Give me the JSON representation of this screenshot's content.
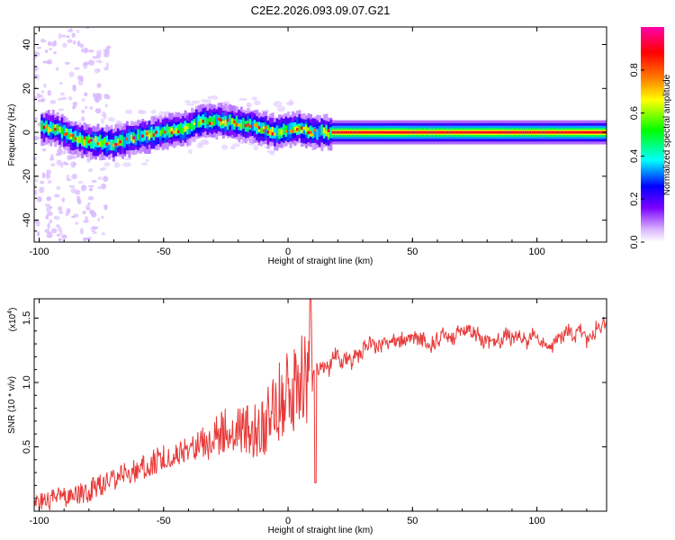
{
  "title": "C2E2.2026.093.09.07.G21",
  "chart_data": [
    {
      "type": "heatmap",
      "xlabel": "Height of straight line (km)",
      "ylabel": "Frequency (Hz)",
      "xlim": [
        -102,
        128
      ],
      "ylim": [
        -50,
        48
      ],
      "xticks": [
        -100,
        -50,
        0,
        50,
        100
      ],
      "yticks": [
        -40,
        -20,
        0,
        20,
        40
      ],
      "colorbar": {
        "label": "Normalized spectral amplitude",
        "range": [
          0,
          1
        ],
        "ticks": [
          "0.0",
          "0.2",
          "0.4",
          "0.6",
          "0.8"
        ],
        "tick_values": [
          0,
          0.2,
          0.4,
          0.6,
          0.8
        ],
        "colors": [
          "#ffffff",
          "#d9b3ff",
          "#7a00ff",
          "#0000ff",
          "#00ffff",
          "#00ff00",
          "#ffff00",
          "#ff7f00",
          "#ff0000",
          "#ff00aa"
        ]
      },
      "ridge": [
        {
          "x": -95,
          "y": 2
        },
        {
          "x": -90,
          "y": 0
        },
        {
          "x": -85,
          "y": -3
        },
        {
          "x": -80,
          "y": -4
        },
        {
          "x": -70,
          "y": -5
        },
        {
          "x": -60,
          "y": -2
        },
        {
          "x": -50,
          "y": 0
        },
        {
          "x": -40,
          "y": 2
        },
        {
          "x": -35,
          "y": 5
        },
        {
          "x": -25,
          "y": 5
        },
        {
          "x": -15,
          "y": 3
        },
        {
          "x": -5,
          "y": 0
        },
        {
          "x": 5,
          "y": 2
        },
        {
          "x": 10,
          "y": 0
        },
        {
          "x": 20,
          "y": 0
        },
        {
          "x": 128,
          "y": 0
        }
      ]
    },
    {
      "type": "line",
      "xlabel": "Height of straight line (km)",
      "ylabel": "SNR (10 * v/v)",
      "scale_label": "(x10",
      "scale_exp": "4",
      "scale_close": ")",
      "xlim": [
        -102,
        128
      ],
      "ylim": [
        0,
        1.65
      ],
      "xticks": [
        -100,
        -50,
        0,
        50,
        100
      ],
      "yticks": [
        "0.5",
        "1.0",
        "1.5"
      ],
      "ytick_values": [
        0.5,
        1.0,
        1.5
      ],
      "color": "#e83a3a",
      "trend": [
        {
          "x": -102,
          "y": 0.02
        },
        {
          "x": -90,
          "y": 0.08
        },
        {
          "x": -80,
          "y": 0.12
        },
        {
          "x": -70,
          "y": 0.22
        },
        {
          "x": -60,
          "y": 0.28
        },
        {
          "x": -50,
          "y": 0.38
        },
        {
          "x": -40,
          "y": 0.45
        },
        {
          "x": -30,
          "y": 0.6
        },
        {
          "x": -20,
          "y": 0.65
        },
        {
          "x": -10,
          "y": 0.72
        },
        {
          "x": -5,
          "y": 0.85
        },
        {
          "x": 0,
          "y": 0.95
        },
        {
          "x": 5,
          "y": 1.05
        },
        {
          "x": 10,
          "y": 1.1
        },
        {
          "x": 20,
          "y": 1.15
        },
        {
          "x": 30,
          "y": 1.25
        },
        {
          "x": 40,
          "y": 1.3
        },
        {
          "x": 50,
          "y": 1.35
        },
        {
          "x": 60,
          "y": 1.38
        },
        {
          "x": 70,
          "y": 1.4
        },
        {
          "x": 80,
          "y": 1.35
        },
        {
          "x": 90,
          "y": 1.4
        },
        {
          "x": 100,
          "y": 1.35
        },
        {
          "x": 110,
          "y": 1.35
        },
        {
          "x": 120,
          "y": 1.4
        },
        {
          "x": 128,
          "y": 1.45
        }
      ],
      "features": [
        {
          "x": 9,
          "y": 1.65
        },
        {
          "x": 11,
          "y": 0.22
        }
      ]
    }
  ]
}
